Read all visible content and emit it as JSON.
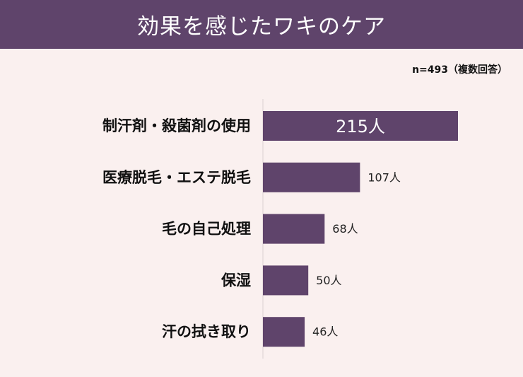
{
  "header": {
    "title": "効果を感じたワキのケア"
  },
  "note": "n=493（複数回答）",
  "colors": {
    "header_bg": "#5f446b",
    "bar": "#5f446b",
    "background": "#faf0ef"
  },
  "chart_data": {
    "type": "bar",
    "orientation": "horizontal",
    "title": "効果を感じたワキのケア",
    "categories": [
      "制汗剤・殺菌剤の使用",
      "医療脱毛・エステ脱毛",
      "毛の自己処理",
      "保湿",
      "汗の拭き取り"
    ],
    "values": [
      215,
      107,
      68,
      50,
      46
    ],
    "value_labels": [
      "215人",
      "107人",
      "68人",
      "50人",
      "46人"
    ],
    "unit": "人",
    "xlim": [
      0,
      215
    ],
    "grid": false,
    "legend": "none"
  }
}
